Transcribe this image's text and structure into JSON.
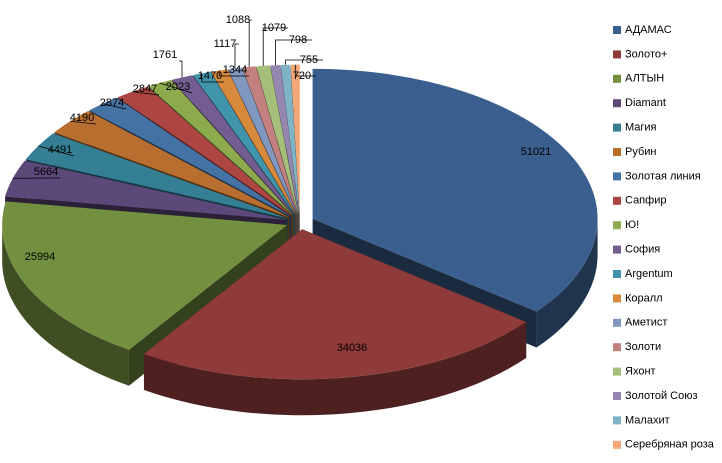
{
  "chart_data": {
    "type": "pie3d",
    "categories": [
      "АДАМАС",
      "Золото+",
      "АЛТЫН",
      "Diamant",
      "Магия",
      "Рубин",
      "Золотая линия",
      "Сапфир",
      "Ю!",
      "София",
      "Argentum",
      "Коралл",
      "Аметист",
      "Золоти",
      "Яхонт",
      "Золотой Союз",
      "Малахит",
      "Серебряная роза"
    ],
    "values": [
      51021,
      34036,
      25994,
      5664,
      4491,
      4190,
      2874,
      2847,
      2023,
      1761,
      1470,
      1344,
      1117,
      1088,
      1079,
      798,
      755,
      720
    ],
    "colors": [
      "#3A5F8E",
      "#8E3B39",
      "#72903F",
      "#5D487A",
      "#347F93",
      "#B76E2F",
      "#4472A5",
      "#AD4643",
      "#8DAA4D",
      "#735D91",
      "#4095AD",
      "#D88A3C",
      "#8097C0",
      "#C2807E",
      "#A5BE7A",
      "#9587AF",
      "#7FB3C6",
      "#F2A876"
    ],
    "legend": "right"
  }
}
